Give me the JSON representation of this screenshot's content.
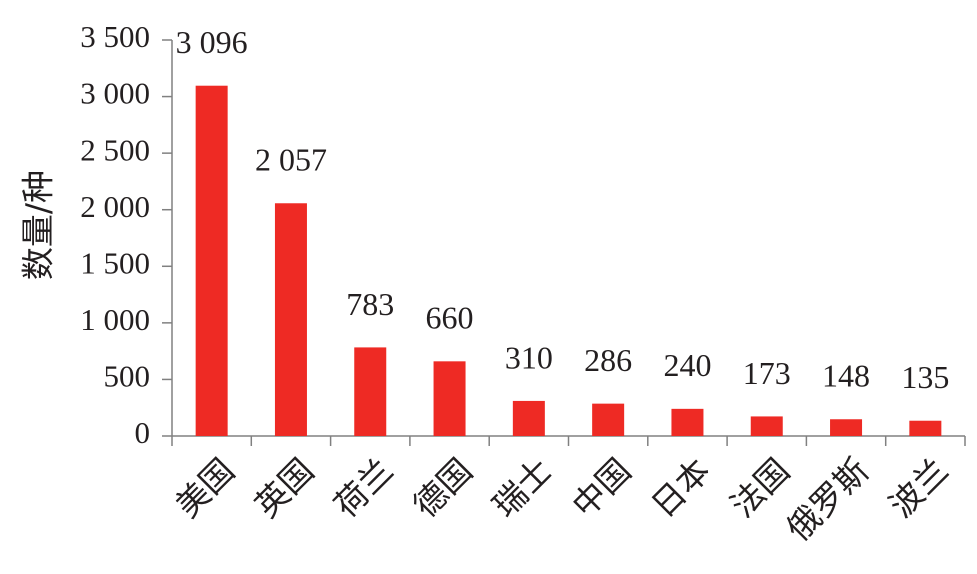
{
  "chart_data": {
    "type": "bar",
    "ylabel": "数量/种",
    "categories": [
      "美国",
      "英国",
      "荷兰",
      "德国",
      "瑞士",
      "中国",
      "日本",
      "法国",
      "俄罗斯",
      "波兰"
    ],
    "values": [
      3096,
      2057,
      783,
      660,
      310,
      286,
      240,
      173,
      148,
      135
    ],
    "value_labels": [
      "3 096",
      "2 057",
      "783",
      "660",
      "310",
      "286",
      "240",
      "173",
      "148",
      "135"
    ],
    "color": "#ee2a24",
    "ylim": [
      0,
      3500
    ],
    "yticks": [
      0,
      500,
      {
        "value": 1000,
        "label": "1 000"
      },
      {
        "value": 1500,
        "label": "1 500"
      },
      {
        "value": 2000,
        "label": "2 000"
      },
      {
        "value": 2500,
        "label": "2 500"
      },
      {
        "value": 3000,
        "label": "3 000"
      },
      {
        "value": 3500,
        "label": "3 500"
      }
    ],
    "grid": false
  }
}
